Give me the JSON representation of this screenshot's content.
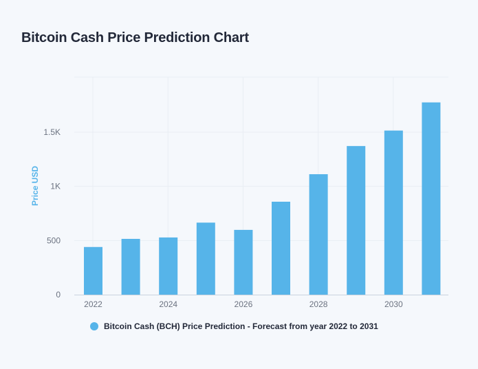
{
  "page": {
    "title": "Bitcoin Cash Price Prediction Chart"
  },
  "colors": {
    "bar": "#56b4e9",
    "grid": "#e9eef4",
    "axis": "#c9d3de",
    "background": "#f5f8fc"
  },
  "chart_data": {
    "type": "bar",
    "title": "Bitcoin Cash Price Prediction Chart",
    "xlabel": "",
    "ylabel": "Price USD",
    "x": [
      2022,
      2023,
      2024,
      2025,
      2026,
      2027,
      2028,
      2029,
      2030,
      2031
    ],
    "x_tick_labels": [
      "2022",
      "2024",
      "2026",
      "2028",
      "2030"
    ],
    "x_ticks": [
      2022,
      2024,
      2026,
      2028,
      2030
    ],
    "series": [
      {
        "name": "Bitcoin Cash (BCH) Price Prediction - Forecast from year 2022 to 2031",
        "values": [
          440,
          515,
          528,
          665,
          598,
          858,
          1112,
          1372,
          1515,
          1775
        ]
      }
    ],
    "y_ticks": [
      0,
      500,
      1000,
      1500
    ],
    "y_tick_labels": [
      "0",
      "500",
      "1K",
      "1.5K"
    ],
    "ylim": [
      0,
      2000
    ],
    "grid": true,
    "legend_position": "bottom-left"
  }
}
